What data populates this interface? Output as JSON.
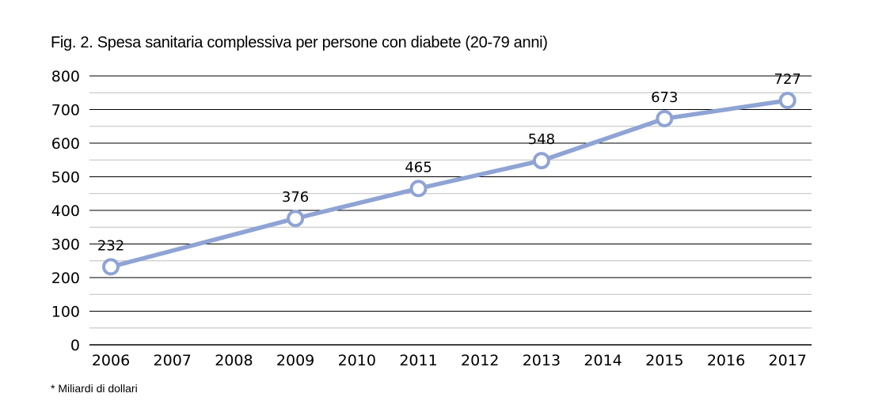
{
  "chart_data": {
    "type": "line",
    "title": "Fig. 2. Spesa sanitaria complessiva per persone con diabete (20-79 anni)",
    "footnote": "* Miliardi di dollari",
    "xlabel": "",
    "ylabel": "",
    "categories": [
      "2006",
      "2007",
      "2008",
      "2009",
      "2010",
      "2011",
      "2012",
      "2013",
      "2014",
      "2015",
      "2016",
      "2017"
    ],
    "points": [
      {
        "x": "2006",
        "y": 232
      },
      {
        "x": "2009",
        "y": 376
      },
      {
        "x": "2011",
        "y": 465
      },
      {
        "x": "2013",
        "y": 548
      },
      {
        "x": "2015",
        "y": 673
      },
      {
        "x": "2017",
        "y": 727
      }
    ],
    "ylim": [
      0,
      800
    ],
    "yticks": [
      0,
      100,
      200,
      300,
      400,
      500,
      600,
      700,
      800
    ],
    "grid": true,
    "line_color": "#8fa4d4",
    "marker_fill": "#ffffff",
    "gridline_color": "#000000",
    "minor_gridline_color": "#bdbdbd"
  }
}
